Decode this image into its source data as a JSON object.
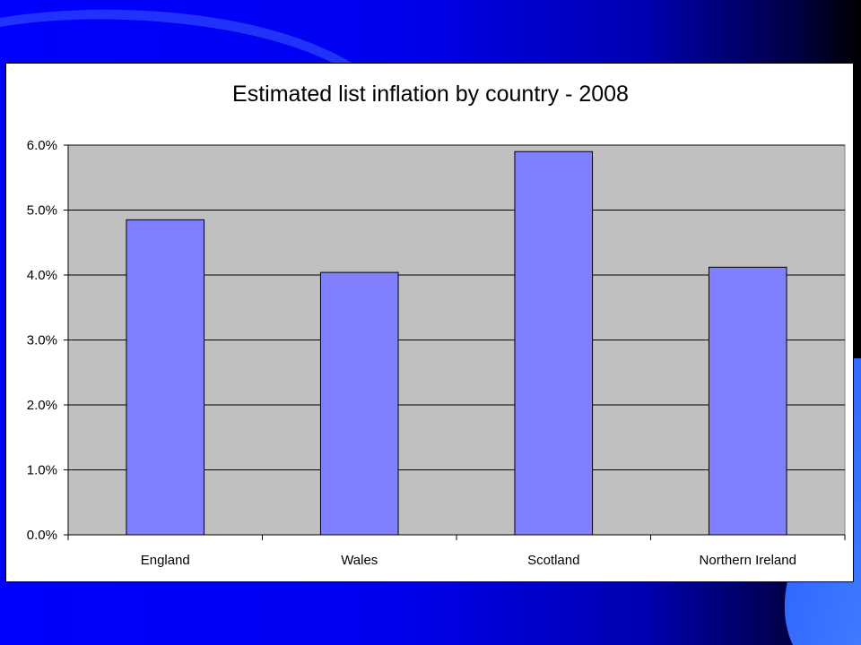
{
  "slide": {
    "background_color": "#0000ff",
    "accent_color": "#3b6cff"
  },
  "chart_data": {
    "type": "bar",
    "title": "Estimated list inflation by country - 2008",
    "categories": [
      "England",
      "Wales",
      "Scotland",
      "Northern Ireland"
    ],
    "values": [
      4.85,
      4.04,
      5.9,
      4.12
    ],
    "value_format": "percent",
    "ylim": [
      0,
      6
    ],
    "yticks": [
      "0.0%",
      "1.0%",
      "2.0%",
      "3.0%",
      "4.0%",
      "5.0%",
      "6.0%"
    ],
    "grid": true,
    "legend": "none",
    "bar_color": "#8080ff",
    "plot_background": "#c0c0c0"
  }
}
